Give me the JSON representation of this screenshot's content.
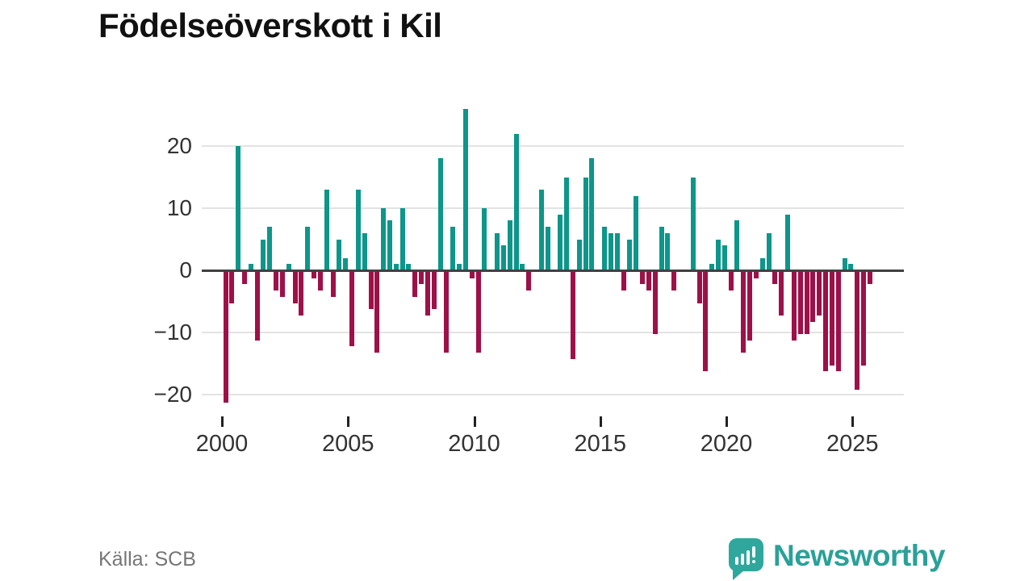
{
  "title": "Födelseöverskott i Kil",
  "source_caption": "Källa: SCB",
  "brand": {
    "wordmark": "Newsworthy"
  },
  "colors": {
    "positive_bar": "#0d968a",
    "negative_bar": "#9e1048",
    "zero_line": "#404040",
    "gridline": "#e3e3e3",
    "axis_text": "#333333",
    "muted_text": "#767676",
    "brand_teal": "#2fa79c"
  },
  "chart_data": {
    "type": "bar",
    "title": "Födelseöverskott i Kil",
    "frequency": "quarterly",
    "start_year": 2000,
    "start_quarter": 1,
    "values": [
      -21,
      -5,
      20,
      -2,
      1,
      -11,
      5,
      7,
      -3,
      -4,
      1,
      -5,
      -7,
      7,
      -1,
      -3,
      13,
      -4,
      5,
      2,
      -12,
      13,
      6,
      -6,
      -13,
      10,
      8,
      1,
      10,
      1,
      -4,
      -2,
      -7,
      -6,
      18,
      -13,
      7,
      1,
      26,
      -1,
      -13,
      10,
      0,
      6,
      4,
      8,
      22,
      1,
      -3,
      0,
      13,
      7,
      0,
      9,
      15,
      -14,
      5,
      15,
      18,
      0,
      7,
      6,
      6,
      -3,
      5,
      12,
      -2,
      -3,
      -10,
      7,
      6,
      -3,
      0,
      0,
      15,
      -5,
      -16,
      1,
      5,
      4,
      -3,
      8,
      -13,
      -11,
      -1,
      2,
      6,
      -2,
      -7,
      9,
      -11,
      -10,
      -10,
      -8,
      -7,
      -16,
      -15,
      -16,
      2,
      1,
      -19,
      -15,
      -2
    ],
    "x_tick_years": [
      2000,
      2005,
      2010,
      2015,
      2020,
      2025
    ],
    "y_tick_values": [
      20,
      10,
      0,
      -10,
      -20
    ],
    "y_tick_labels": [
      "20",
      "10",
      "0",
      "−10",
      "−20"
    ],
    "ylim": [
      -22,
      27
    ],
    "grid": "horizontal",
    "legend": "none",
    "positive_color": "#0d968a",
    "negative_color": "#9e1048"
  }
}
